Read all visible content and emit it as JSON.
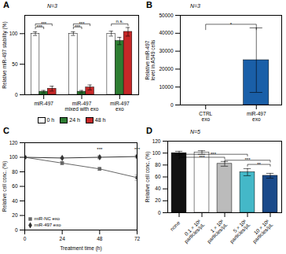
{
  "chart_data": [
    {
      "type": "bar",
      "title": "A",
      "categories": [
        "miR-497",
        "miR-497\nmixed with exo",
        "miR-497\nexo"
      ],
      "series": [
        {
          "name": "0 h",
          "color": "#ffffff",
          "values": [
            100,
            100,
            100
          ],
          "errors": [
            3,
            3,
            4
          ]
        },
        {
          "name": "24 h",
          "color": "#2e7d32",
          "values": [
            5,
            5,
            88
          ],
          "errors": [
            2,
            2,
            6
          ]
        },
        {
          "name": "48 h",
          "color": "#c62828",
          "values": [
            10,
            12,
            103
          ],
          "errors": [
            4,
            4,
            7
          ]
        }
      ],
      "ylabel": "Relative miR-497 stability (%)",
      "ylim": [
        0,
        130
      ],
      "yticks": [
        0,
        50,
        100
      ],
      "legend": "bottom",
      "annotations": [
        {
          "text": "N=3"
        },
        {
          "text": "***",
          "group": "miR-497",
          "from": "0 h",
          "to": "24 h",
          "y": 108,
          "y_top": 111
        },
        {
          "text": "***",
          "group": "miR-497",
          "from": "0 h",
          "to": "48 h",
          "y": 113,
          "y_top": 116
        },
        {
          "text": "***",
          "group": "miR-497\nmixed with exo",
          "from": "0 h",
          "to": "24 h",
          "y": 108,
          "y_top": 111
        },
        {
          "text": "***",
          "group": "miR-497\nmixed with exo",
          "from": "0 h",
          "to": "48 h",
          "y": 113,
          "y_top": 116
        },
        {
          "text": "n.s.",
          "group": "miR-497\nexo",
          "from": "0 h",
          "to": "48 h",
          "y": 113,
          "y_top": 116
        }
      ]
    },
    {
      "type": "bar",
      "title": "B",
      "categories": [
        "CTRL\nexo",
        "miR-497\nexo"
      ],
      "values": [
        0,
        25000
      ],
      "errors": [
        0,
        18000
      ],
      "color": "#1a5fa8",
      "ylabel": "Relative miR-497\nlevel in A549 cells",
      "ylim": [
        0,
        50000
      ],
      "yticks": [
        0,
        10000,
        20000,
        30000,
        40000,
        50000
      ],
      "annotations": [
        {
          "text": "N=3"
        },
        {
          "text": "*",
          "from": "CTRL\nexo",
          "to": "miR-497\nexo",
          "y": 42000,
          "y_top": 45000
        }
      ]
    },
    {
      "type": "line",
      "title": "C",
      "x": [
        0,
        24,
        48,
        72
      ],
      "series": [
        {
          "name": "miR-NC exo",
          "color": "#666666",
          "marker": "square",
          "values": [
            100,
            92,
            84,
            72
          ],
          "errors": [
            1,
            2,
            2,
            4
          ]
        },
        {
          "name": "miR-497 exo",
          "color": "#333333",
          "marker": "diamond",
          "values": [
            100,
            99,
            100,
            101
          ],
          "errors": [
            1,
            1,
            2,
            2
          ]
        }
      ],
      "xlabel": "Treatment time (h)",
      "ylabel": "Relative cell conc. (%)",
      "xlim": [
        0,
        72
      ],
      "xticks": [
        0,
        24,
        48,
        72
      ],
      "ylim": [
        0,
        120
      ],
      "yticks": [
        0,
        20,
        40,
        60,
        80,
        100,
        120
      ],
      "legend": "lower left",
      "annotations": [
        {
          "text": "***",
          "x": 48,
          "y": 109
        },
        {
          "text": "***",
          "x": 72,
          "y": 109
        }
      ]
    },
    {
      "type": "bar",
      "title": "D",
      "categories": [
        "none",
        "0.1 × 10⁶\nparticles/μL",
        "1 × 10⁶\nparticles/μL",
        "5 × 10⁶\nparticles/μL",
        "10 × 10⁶\nparticles/μL"
      ],
      "values": [
        100,
        101,
        82,
        68,
        62
      ],
      "errors": [
        3,
        3,
        4,
        6,
        4
      ],
      "colors": [
        "#111111",
        "#ffffff",
        "#bbbbbb",
        "#44b8c8",
        "#1a4a8a"
      ],
      "ylabel": "Relative cell conc. (%)",
      "ylim": [
        0,
        120
      ],
      "yticks": [
        0,
        20,
        40,
        60,
        80,
        100,
        120
      ],
      "annotations": [
        {
          "text": "N=5"
        },
        {
          "text": "***",
          "from": "none",
          "to": "1 × 10⁶\nparticles/μL",
          "y": 90,
          "y_top": 93
        },
        {
          "text": "***",
          "from": "none",
          "to": "5 × 10⁶\nparticles/μL",
          "y": 95,
          "y_top": 98
        },
        {
          "text": "**",
          "from": "5 × 10⁶\nparticles/μL",
          "to": "10 × 10⁶\nparticles/μL",
          "y": 78,
          "y_top": 81
        },
        {
          "text": "***",
          "from": "1 × 10⁶\nparticles/μL",
          "to": "10 × 10⁶\nparticles/μL",
          "y": 85,
          "y_top": 88
        }
      ]
    }
  ]
}
